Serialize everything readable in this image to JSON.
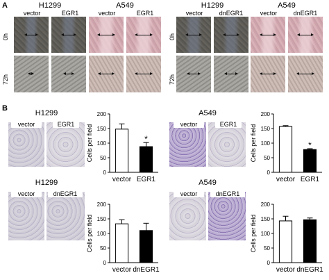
{
  "panel_a": {
    "letter": "A",
    "groups": [
      {
        "title": "H1299",
        "labels": [
          "vector",
          "EGR1"
        ]
      },
      {
        "title": "A549",
        "labels": [
          "vector",
          "EGR1"
        ]
      },
      {
        "title": "H1299",
        "labels": [
          "vector",
          "dnEGR1"
        ]
      },
      {
        "title": "A549",
        "labels": [
          "vector",
          "dnEGR1"
        ]
      }
    ],
    "rows": [
      "0h",
      "72h"
    ]
  },
  "panel_b": {
    "letter": "B",
    "image_groups": [
      {
        "title": "H1299",
        "labels": [
          "vector",
          "EGR1"
        ]
      },
      {
        "title": "A549",
        "labels": [
          "vector",
          "EGR1"
        ]
      },
      {
        "title": "H1299",
        "labels": [
          "vector",
          "dnEGR1"
        ]
      },
      {
        "title": "A549",
        "labels": [
          "vector",
          "dnEGR1"
        ]
      }
    ]
  },
  "chart_data": [
    {
      "type": "bar",
      "categories": [
        "vector",
        "EGR1"
      ],
      "values": [
        148,
        88
      ],
      "errors": [
        18,
        14
      ],
      "ylabel": "Cells per field",
      "ylim": [
        0,
        200
      ],
      "yticks": [
        0,
        50,
        100,
        150,
        200
      ],
      "bar_colors": [
        "#ffffff",
        "#000000"
      ],
      "significance": [
        "",
        "*"
      ]
    },
    {
      "type": "bar",
      "categories": [
        "vector",
        "EGR1"
      ],
      "values": [
        157,
        78
      ],
      "errors": [
        3,
        3
      ],
      "ylabel": "Cells per field",
      "ylim": [
        0,
        200
      ],
      "yticks": [
        0,
        50,
        100,
        150,
        200
      ],
      "bar_colors": [
        "#ffffff",
        "#000000"
      ],
      "significance": [
        "",
        "*"
      ]
    },
    {
      "type": "bar",
      "categories": [
        "vector",
        "dnEGR1"
      ],
      "values": [
        133,
        110
      ],
      "errors": [
        14,
        25
      ],
      "ylabel": "Cells per field",
      "ylim": [
        0,
        200
      ],
      "yticks": [
        0,
        50,
        100,
        150,
        200
      ],
      "bar_colors": [
        "#ffffff",
        "#000000"
      ],
      "significance": [
        "",
        ""
      ]
    },
    {
      "type": "bar",
      "categories": [
        "vector",
        "dnEGR1"
      ],
      "values": [
        143,
        147
      ],
      "errors": [
        16,
        6
      ],
      "ylabel": "Cells per field",
      "ylim": [
        0,
        200
      ],
      "yticks": [
        0,
        50,
        100,
        150,
        200
      ],
      "bar_colors": [
        "#ffffff",
        "#000000"
      ],
      "significance": [
        "",
        ""
      ]
    }
  ]
}
